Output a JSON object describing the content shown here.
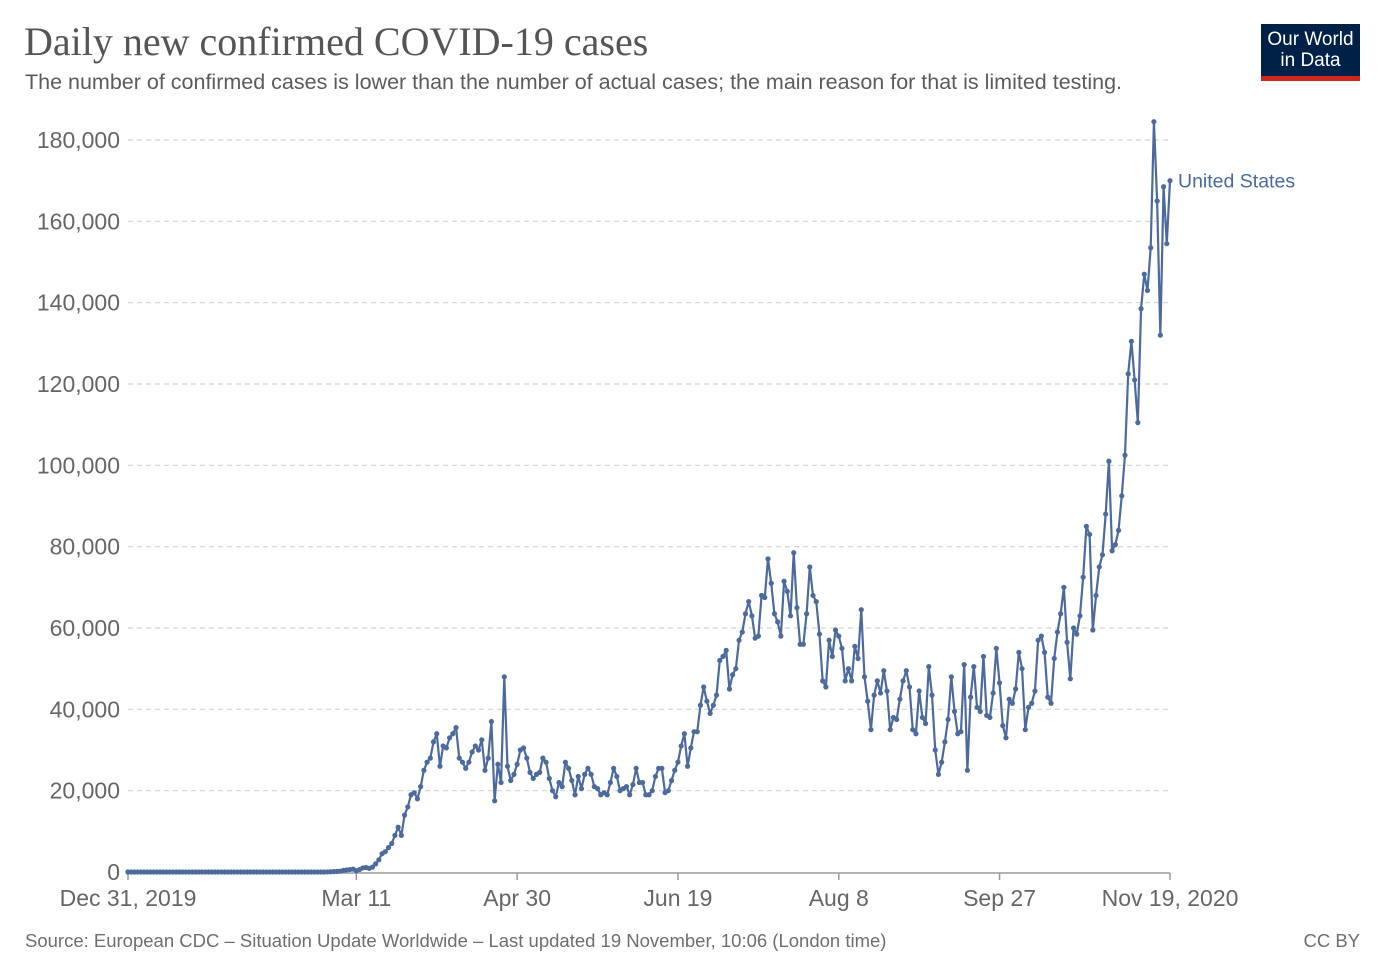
{
  "header": {
    "title": "Daily new confirmed COVID-19 cases",
    "subtitle": "The number of confirmed cases is lower than the number of actual cases; the main reason for that is limited testing."
  },
  "logo": {
    "line1": "Our World",
    "line2": "in Data",
    "bg_color": "#002147",
    "accent_color": "#ce261e"
  },
  "footer": {
    "source": "Source: European CDC – Situation Update Worldwide – Last updated 19 November, 10:06 (London time)",
    "license": "CC BY"
  },
  "chart_data": {
    "type": "line",
    "title": "Daily new confirmed COVID-19 cases",
    "subtitle": "The number of confirmed cases is lower than the number of actual cases; the main reason for that is limited testing.",
    "xlabel": "",
    "ylabel": "",
    "x_range": [
      "2019-12-31",
      "2020-11-19"
    ],
    "x_ticks": [
      {
        "date": "2019-12-31",
        "label": "Dec 31, 2019"
      },
      {
        "date": "2020-03-11",
        "label": "Mar 11"
      },
      {
        "date": "2020-04-30",
        "label": "Apr 30"
      },
      {
        "date": "2020-06-19",
        "label": "Jun 19"
      },
      {
        "date": "2020-08-08",
        "label": "Aug 8"
      },
      {
        "date": "2020-09-27",
        "label": "Sep 27"
      },
      {
        "date": "2020-11-19",
        "label": "Nov 19, 2020"
      }
    ],
    "ylim": [
      0,
      180000
    ],
    "y_ticks": [
      0,
      20000,
      40000,
      60000,
      80000,
      100000,
      120000,
      140000,
      160000,
      180000
    ],
    "y_tick_labels": [
      "0",
      "20,000",
      "40,000",
      "60,000",
      "80,000",
      "100,000",
      "120,000",
      "140,000",
      "160,000",
      "180,000"
    ],
    "grid": true,
    "legend": "end-of-line label",
    "series": [
      {
        "name": "United States",
        "color": "#4c6a9c",
        "start_date": "2020-03-01",
        "values": [
          0,
          20,
          60,
          100,
          150,
          200,
          400,
          500,
          600,
          700,
          300,
          600,
          1000,
          1100,
          900,
          1200,
          2000,
          3000,
          4500,
          5000,
          6000,
          7000,
          9000,
          11000,
          9000,
          14000,
          16000,
          19000,
          19500,
          18000,
          21000,
          25000,
          27000,
          28000,
          32000,
          34000,
          26000,
          31000,
          30500,
          33000,
          34000,
          35500,
          28000,
          27000,
          25500,
          27000,
          29500,
          31000,
          30000,
          32500,
          25000,
          28000,
          37000,
          17500,
          26500,
          22000,
          48000,
          26000,
          22500,
          24000,
          26500,
          30000,
          30500,
          28000,
          24500,
          23000,
          24000,
          24500,
          28000,
          27000,
          23000,
          20000,
          18500,
          22000,
          21000,
          27000,
          25500,
          22500,
          19000,
          23500,
          20500,
          24000,
          25500,
          24000,
          21000,
          20500,
          19000,
          19500,
          19000,
          22000,
          25500,
          23500,
          20000,
          20500,
          21000,
          19000,
          21500,
          25500,
          22000,
          22000,
          19000,
          19000,
          20000,
          23500,
          25500,
          25500,
          19500,
          20000,
          22500,
          25000,
          27000,
          31000,
          34000,
          26000,
          30500,
          34500,
          34500,
          41000,
          45500,
          42000,
          39000,
          41000,
          43500,
          52000,
          53000,
          54500,
          45000,
          48500,
          50000,
          57000,
          59000,
          63500,
          66500,
          63000,
          57500,
          58000,
          68000,
          67500,
          77000,
          71000,
          63500,
          61500,
          58000,
          71500,
          69000,
          63000,
          78500,
          65000,
          56000,
          56000,
          63500,
          75000,
          68000,
          66500,
          58500,
          47000,
          45500,
          57000,
          53000,
          59500,
          58000,
          55000,
          47000,
          50000,
          47000,
          55500,
          52500,
          64500,
          48000,
          42000,
          35000,
          43500,
          47000,
          44000,
          49500,
          44500,
          35000,
          38000,
          37500,
          42500,
          47000,
          49500,
          45500,
          35000,
          34000,
          44500,
          38000,
          36500,
          50500,
          43500,
          30000,
          24000,
          27000,
          32000,
          37500,
          48000,
          39500,
          34000,
          34500,
          51000,
          25000,
          43000,
          50500,
          40500,
          39500,
          53000,
          38500,
          38000,
          44000,
          55000,
          46500,
          36000,
          33000,
          42500,
          41500,
          45000,
          54000,
          50000,
          35000,
          40500,
          41500,
          44500,
          57000,
          58000,
          54000,
          43000,
          41500,
          52500,
          59000,
          63500,
          70000,
          56500,
          47500,
          60000,
          58500,
          63000,
          72500,
          85000,
          83000,
          59500,
          68000,
          75000,
          78000,
          88000,
          101000,
          79000,
          80500,
          84000,
          92500,
          102500,
          122500,
          130500,
          121000,
          110500,
          138500,
          147000,
          143000,
          153500,
          184500,
          165000,
          132000,
          168500,
          154500,
          170000
        ]
      }
    ]
  }
}
